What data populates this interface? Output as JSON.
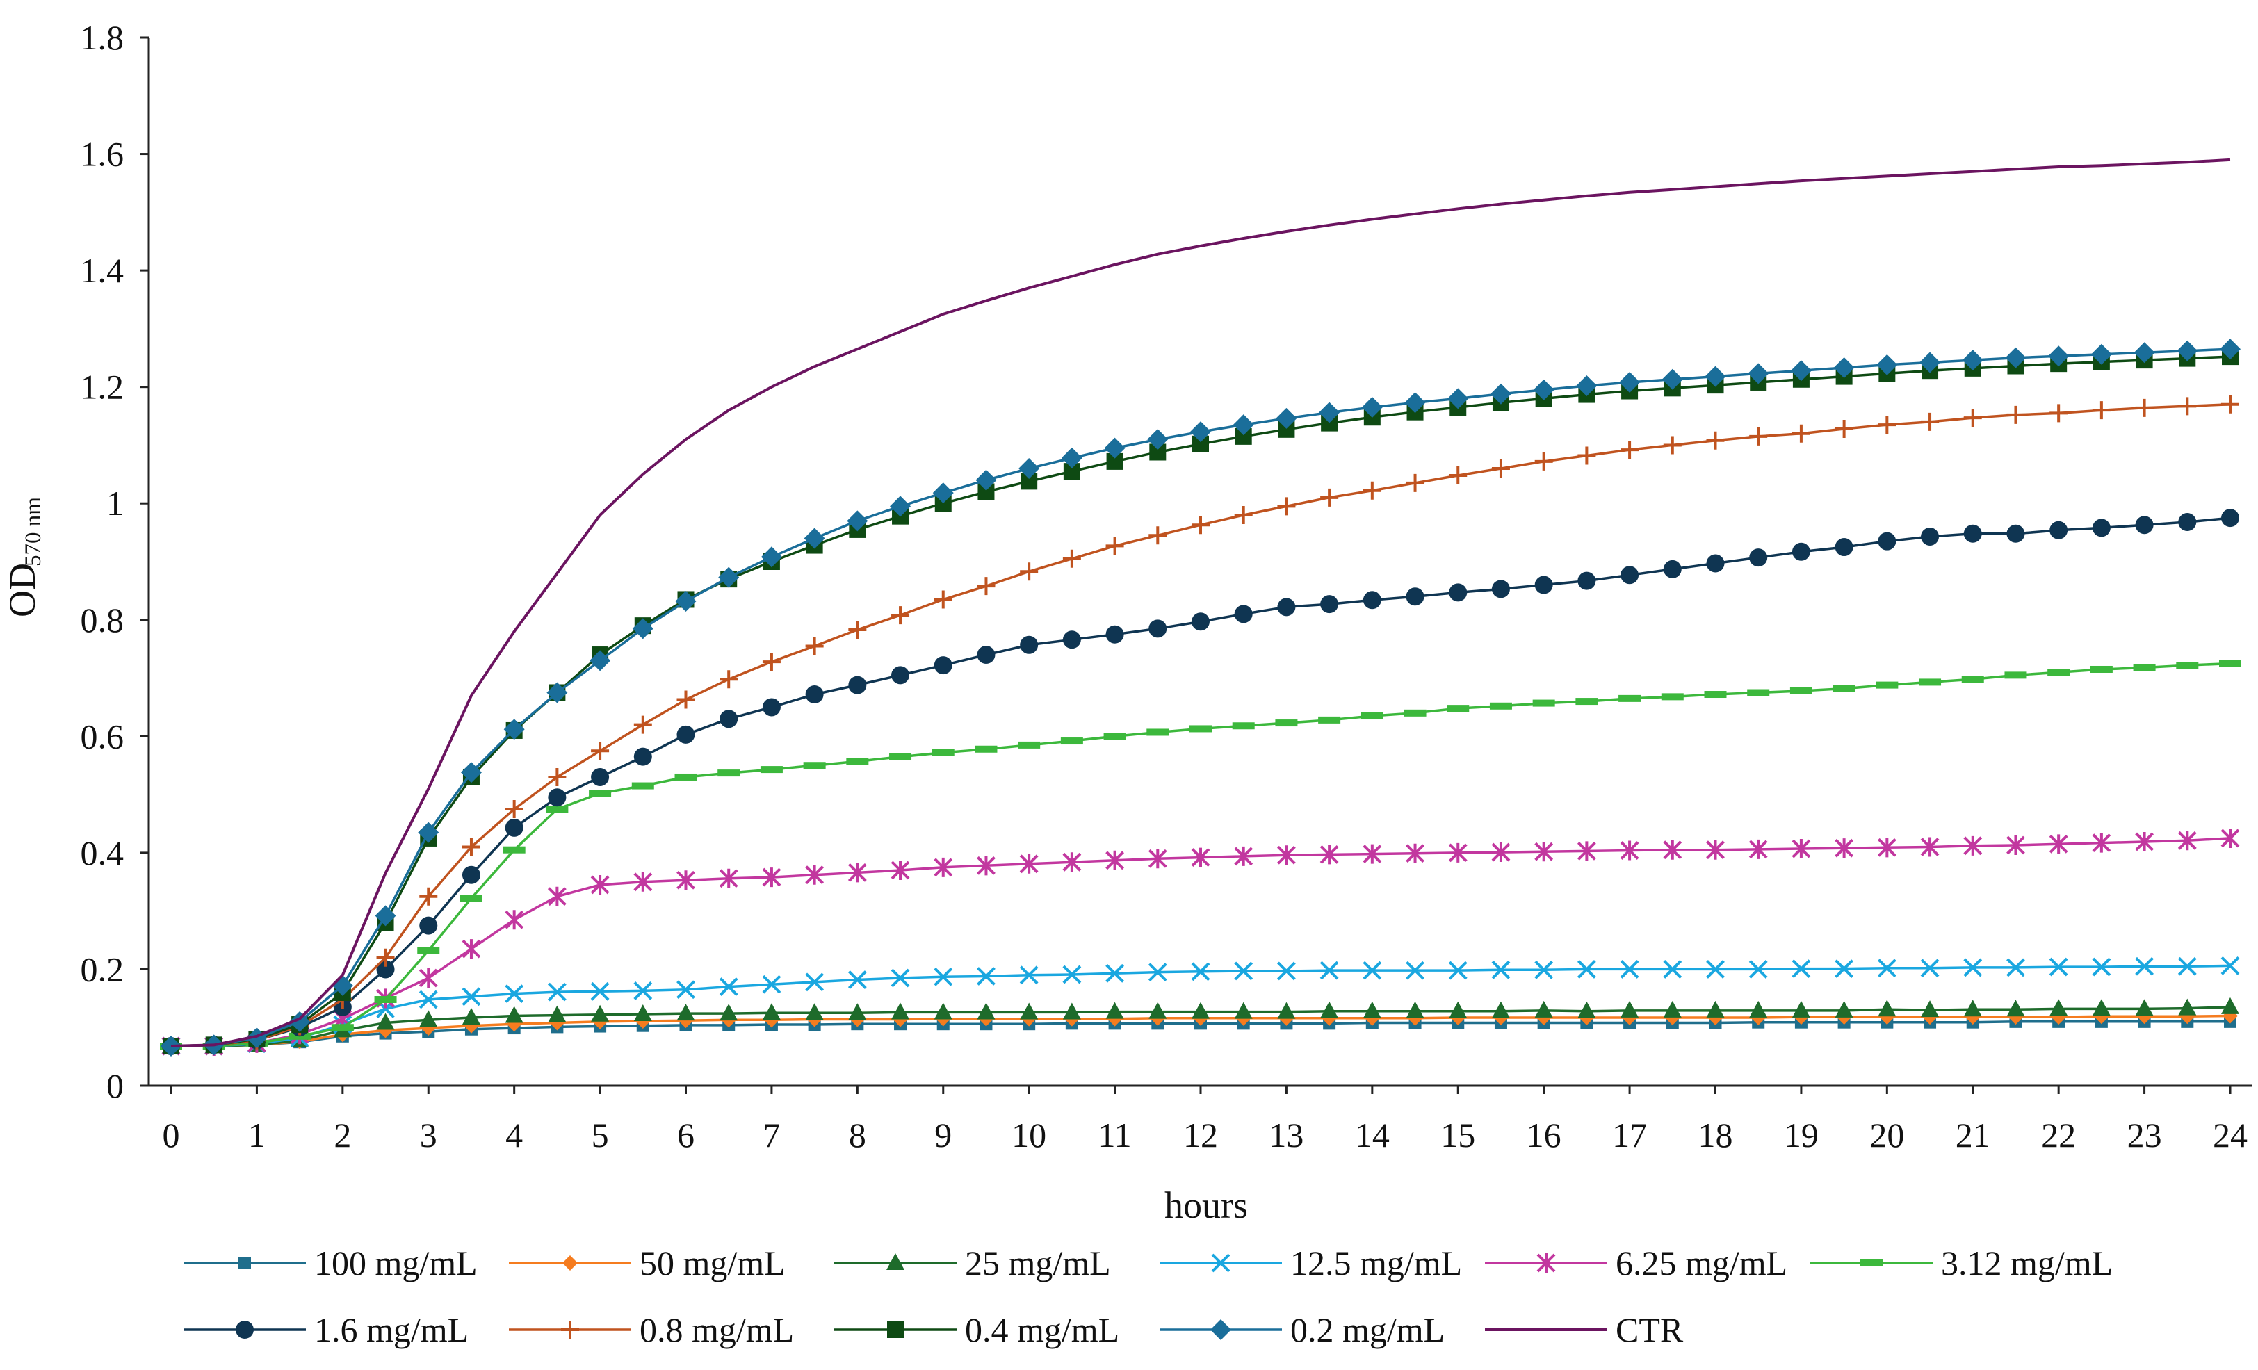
{
  "chart_data": {
    "type": "line",
    "title": "",
    "xlabel": "hours",
    "ylabel": "OD",
    "ylabel_subscript": "570 nm",
    "xlim": [
      0,
      24
    ],
    "ylim": [
      0,
      1.8
    ],
    "x_ticks": [
      "0",
      "1",
      "2",
      "3",
      "4",
      "5",
      "6",
      "7",
      "8",
      "9",
      "10",
      "11",
      "12",
      "13",
      "14",
      "15",
      "16",
      "17",
      "18",
      "19",
      "20",
      "21",
      "22",
      "23",
      "24"
    ],
    "y_ticks": [
      "0",
      "0.2",
      "0.4",
      "0.6",
      "0.8",
      "1",
      "1.2",
      "1.4",
      "1.6",
      "1.8"
    ],
    "grid": false,
    "legend_position": "bottom",
    "x": [
      0,
      0.5,
      1,
      1.5,
      2,
      2.5,
      3,
      3.5,
      4,
      4.5,
      5,
      5.5,
      6,
      6.5,
      7,
      7.5,
      8,
      8.5,
      9,
      9.5,
      10,
      10.5,
      11,
      11.5,
      12,
      12.5,
      13,
      13.5,
      14,
      14.5,
      15,
      15.5,
      16,
      16.5,
      17,
      17.5,
      18,
      18.5,
      19,
      19.5,
      20,
      20.5,
      21,
      21.5,
      22,
      22.5,
      23,
      23.5,
      24
    ],
    "series": [
      {
        "name": "100 mg/mL",
        "color": "#1f6e8c",
        "marker": "square-small",
        "values": [
          0.068,
          0.068,
          0.07,
          0.075,
          0.085,
          0.09,
          0.093,
          0.097,
          0.099,
          0.101,
          0.102,
          0.103,
          0.104,
          0.104,
          0.105,
          0.105,
          0.106,
          0.106,
          0.106,
          0.106,
          0.106,
          0.107,
          0.107,
          0.107,
          0.107,
          0.107,
          0.107,
          0.107,
          0.108,
          0.108,
          0.108,
          0.108,
          0.108,
          0.108,
          0.108,
          0.108,
          0.108,
          0.109,
          0.109,
          0.109,
          0.109,
          0.109,
          0.109,
          0.11,
          0.11,
          0.11,
          0.11,
          0.11,
          0.11
        ]
      },
      {
        "name": "50 mg/mL",
        "color": "#f57c1f",
        "marker": "diamond-small",
        "values": [
          0.068,
          0.068,
          0.07,
          0.076,
          0.088,
          0.095,
          0.099,
          0.103,
          0.106,
          0.108,
          0.11,
          0.111,
          0.112,
          0.113,
          0.113,
          0.114,
          0.114,
          0.114,
          0.115,
          0.115,
          0.115,
          0.115,
          0.115,
          0.116,
          0.116,
          0.116,
          0.116,
          0.116,
          0.116,
          0.116,
          0.117,
          0.117,
          0.117,
          0.117,
          0.117,
          0.117,
          0.117,
          0.117,
          0.118,
          0.118,
          0.118,
          0.118,
          0.118,
          0.118,
          0.118,
          0.119,
          0.119,
          0.119,
          0.12
        ]
      },
      {
        "name": "25 mg/mL",
        "color": "#1e6b2b",
        "marker": "triangle",
        "values": [
          0.068,
          0.068,
          0.07,
          0.078,
          0.095,
          0.108,
          0.113,
          0.117,
          0.12,
          0.121,
          0.122,
          0.123,
          0.124,
          0.124,
          0.125,
          0.125,
          0.125,
          0.126,
          0.126,
          0.126,
          0.126,
          0.126,
          0.127,
          0.127,
          0.127,
          0.127,
          0.127,
          0.128,
          0.128,
          0.128,
          0.128,
          0.128,
          0.129,
          0.128,
          0.129,
          0.129,
          0.129,
          0.129,
          0.129,
          0.129,
          0.131,
          0.13,
          0.131,
          0.131,
          0.132,
          0.132,
          0.132,
          0.133,
          0.135
        ]
      },
      {
        "name": "12.5 mg/mL",
        "color": "#1aa7e0",
        "marker": "x",
        "values": [
          0.068,
          0.068,
          0.072,
          0.082,
          0.105,
          0.132,
          0.148,
          0.153,
          0.158,
          0.161,
          0.162,
          0.163,
          0.165,
          0.17,
          0.174,
          0.178,
          0.182,
          0.185,
          0.187,
          0.188,
          0.19,
          0.191,
          0.193,
          0.195,
          0.196,
          0.197,
          0.197,
          0.198,
          0.198,
          0.198,
          0.198,
          0.199,
          0.199,
          0.2,
          0.2,
          0.2,
          0.2,
          0.2,
          0.201,
          0.201,
          0.202,
          0.202,
          0.203,
          0.203,
          0.204,
          0.204,
          0.205,
          0.205,
          0.206
        ]
      },
      {
        "name": "6.25 mg/mL",
        "color": "#c2379f",
        "marker": "star",
        "values": [
          0.068,
          0.068,
          0.073,
          0.088,
          0.115,
          0.15,
          0.185,
          0.235,
          0.285,
          0.325,
          0.345,
          0.35,
          0.353,
          0.356,
          0.358,
          0.362,
          0.366,
          0.37,
          0.375,
          0.378,
          0.381,
          0.384,
          0.387,
          0.39,
          0.392,
          0.394,
          0.396,
          0.397,
          0.398,
          0.399,
          0.4,
          0.401,
          0.402,
          0.403,
          0.404,
          0.405,
          0.405,
          0.406,
          0.407,
          0.408,
          0.409,
          0.41,
          0.412,
          0.413,
          0.415,
          0.417,
          0.419,
          0.421,
          0.425
        ]
      },
      {
        "name": "3.12 mg/mL",
        "color": "#3cb83c",
        "marker": "dash",
        "values": [
          0.068,
          0.068,
          0.073,
          0.085,
          0.1,
          0.148,
          0.232,
          0.322,
          0.405,
          0.475,
          0.502,
          0.515,
          0.53,
          0.537,
          0.543,
          0.55,
          0.557,
          0.565,
          0.572,
          0.578,
          0.585,
          0.592,
          0.6,
          0.607,
          0.613,
          0.618,
          0.623,
          0.628,
          0.635,
          0.64,
          0.648,
          0.652,
          0.657,
          0.66,
          0.665,
          0.668,
          0.672,
          0.675,
          0.678,
          0.682,
          0.688,
          0.693,
          0.698,
          0.705,
          0.71,
          0.715,
          0.718,
          0.722,
          0.725
        ]
      },
      {
        "name": "1.6 mg/mL",
        "color": "#0f3552",
        "marker": "circle",
        "values": [
          0.068,
          0.07,
          0.078,
          0.1,
          0.135,
          0.2,
          0.275,
          0.362,
          0.443,
          0.495,
          0.53,
          0.565,
          0.603,
          0.63,
          0.65,
          0.672,
          0.688,
          0.705,
          0.722,
          0.74,
          0.757,
          0.766,
          0.775,
          0.785,
          0.797,
          0.81,
          0.822,
          0.827,
          0.834,
          0.84,
          0.847,
          0.853,
          0.86,
          0.867,
          0.877,
          0.887,
          0.897,
          0.907,
          0.917,
          0.925,
          0.935,
          0.943,
          0.948,
          0.948,
          0.954,
          0.958,
          0.963,
          0.968,
          0.975
        ]
      },
      {
        "name": "0.8 mg/mL",
        "color": "#c0531f",
        "marker": "plus",
        "values": [
          0.068,
          0.07,
          0.078,
          0.102,
          0.148,
          0.22,
          0.325,
          0.41,
          0.475,
          0.53,
          0.575,
          0.62,
          0.663,
          0.698,
          0.728,
          0.755,
          0.783,
          0.808,
          0.835,
          0.858,
          0.883,
          0.905,
          0.927,
          0.945,
          0.963,
          0.98,
          0.995,
          1.01,
          1.022,
          1.035,
          1.048,
          1.06,
          1.072,
          1.082,
          1.092,
          1.1,
          1.108,
          1.115,
          1.12,
          1.128,
          1.135,
          1.14,
          1.147,
          1.152,
          1.155,
          1.16,
          1.164,
          1.167,
          1.17
        ]
      },
      {
        "name": "0.4 mg/mL",
        "color": "#0e4a13",
        "marker": "square",
        "values": [
          0.068,
          0.07,
          0.08,
          0.105,
          0.16,
          0.28,
          0.425,
          0.53,
          0.61,
          0.675,
          0.74,
          0.79,
          0.835,
          0.87,
          0.9,
          0.928,
          0.955,
          0.978,
          1.0,
          1.02,
          1.038,
          1.055,
          1.072,
          1.088,
          1.102,
          1.115,
          1.127,
          1.138,
          1.148,
          1.157,
          1.165,
          1.173,
          1.18,
          1.187,
          1.193,
          1.198,
          1.203,
          1.208,
          1.213,
          1.218,
          1.223,
          1.228,
          1.232,
          1.236,
          1.24,
          1.243,
          1.246,
          1.249,
          1.252
        ]
      },
      {
        "name": "0.2 mg/mL",
        "color": "#1a6e9a",
        "marker": "diamond",
        "values": [
          0.068,
          0.07,
          0.082,
          0.11,
          0.172,
          0.292,
          0.435,
          0.538,
          0.612,
          0.675,
          0.73,
          0.785,
          0.832,
          0.873,
          0.908,
          0.94,
          0.97,
          0.995,
          1.018,
          1.04,
          1.06,
          1.078,
          1.095,
          1.11,
          1.123,
          1.135,
          1.146,
          1.156,
          1.165,
          1.173,
          1.18,
          1.188,
          1.195,
          1.202,
          1.208,
          1.213,
          1.218,
          1.223,
          1.228,
          1.233,
          1.238,
          1.242,
          1.246,
          1.25,
          1.253,
          1.256,
          1.259,
          1.262,
          1.265
        ]
      },
      {
        "name": "CTR",
        "color": "#6b1460",
        "marker": "none",
        "values": [
          0.068,
          0.07,
          0.085,
          0.115,
          0.19,
          0.365,
          0.51,
          0.67,
          0.78,
          0.88,
          0.98,
          1.05,
          1.11,
          1.16,
          1.2,
          1.235,
          1.265,
          1.295,
          1.325,
          1.348,
          1.37,
          1.39,
          1.41,
          1.428,
          1.442,
          1.455,
          1.467,
          1.478,
          1.488,
          1.497,
          1.506,
          1.514,
          1.521,
          1.528,
          1.534,
          1.539,
          1.544,
          1.549,
          1.554,
          1.558,
          1.562,
          1.566,
          1.57,
          1.574,
          1.578,
          1.58,
          1.583,
          1.586,
          1.59
        ]
      }
    ]
  }
}
